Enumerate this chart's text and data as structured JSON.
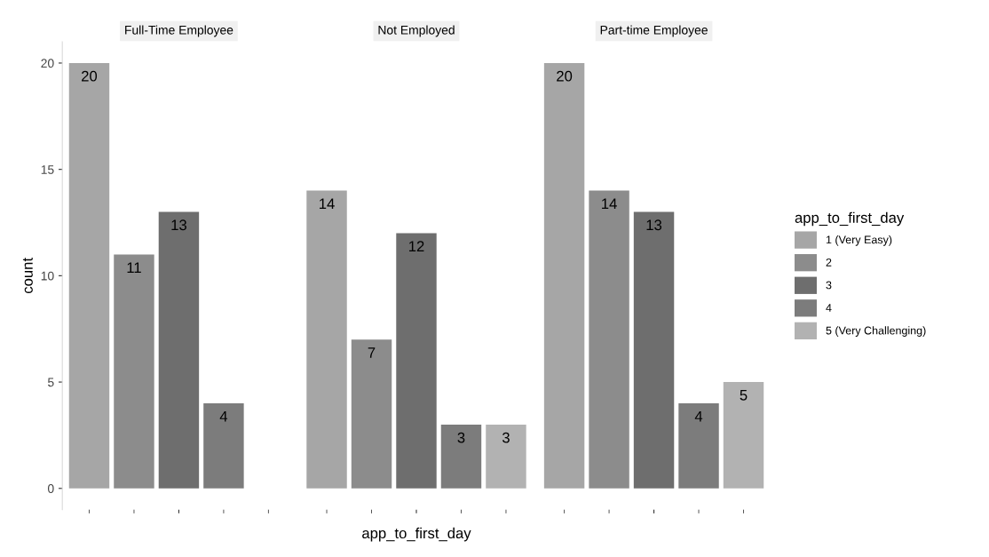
{
  "chart_data": {
    "type": "bar",
    "xlabel": "app_to_first_day",
    "ylabel": "count",
    "legend_title": "app_to_first_day",
    "legend": "right",
    "grid": false,
    "data_labels": true,
    "categories": [
      "Full-Time Employee",
      "Not Employed",
      "Part-time Employee"
    ],
    "ylim": [
      -1,
      21
    ],
    "yticks": [
      0,
      5,
      10,
      15,
      20
    ],
    "series": [
      {
        "name": "1 (Very Easy)",
        "color": "#a6a6a6",
        "values": [
          20,
          14,
          20
        ]
      },
      {
        "name": "2",
        "color": "#8c8c8c",
        "values": [
          11,
          7,
          14
        ]
      },
      {
        "name": "3",
        "color": "#6e6e6e",
        "values": [
          13,
          12,
          13
        ]
      },
      {
        "name": "4",
        "color": "#7c7c7c",
        "values": [
          4,
          3,
          4
        ]
      },
      {
        "name": "5 (Very Challenging)",
        "color": "#b2b2b2",
        "values": [
          null,
          3,
          5
        ]
      }
    ]
  }
}
